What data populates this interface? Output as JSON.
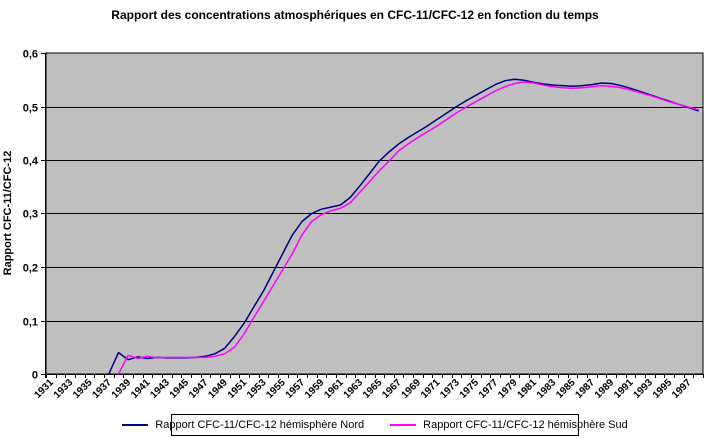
{
  "title": "Rapport des concentrations atmosphériques en CFC-11/CFC-12 en fonction du temps",
  "colors": {
    "chart_bg": "#ffffff",
    "plot_bg": "#c0c0c0",
    "grid": "#000000",
    "axis": "#000000",
    "nord": "#000080",
    "sud": "#ff00ff"
  },
  "y_axis": {
    "title": "Rapport CFC-11/CFC-12",
    "tick_labels": [
      "0",
      "0,1",
      "0,2",
      "0,3",
      "0,4",
      "0,5",
      "0,6"
    ],
    "min": 0,
    "max": 0.6
  },
  "x_axis": {
    "tick_labels": [
      "1931",
      "1933",
      "1935",
      "1937",
      "1939",
      "1941",
      "1943",
      "1945",
      "1947",
      "1949",
      "1951",
      "1953",
      "1955",
      "1957",
      "1959",
      "1961",
      "1963",
      "1965",
      "1967",
      "1969",
      "1971",
      "1973",
      "1975",
      "1977",
      "1979",
      "1981",
      "1983",
      "1985",
      "1987",
      "1989",
      "1991",
      "1993",
      "1995",
      "1997"
    ]
  },
  "legend": {
    "items": [
      {
        "label": "Rapport CFC-11/CFC-12 hémisphère Nord",
        "color": "#000080"
      },
      {
        "label": "Rapport CFC-11/CFC-12 hémisphère Sud",
        "color": "#ff00ff"
      }
    ]
  },
  "chart_data": {
    "type": "line",
    "title": "Rapport des concentrations atmosphériques en CFC-11/CFC-12 en fonction du temps",
    "xlabel": "",
    "ylabel": "Rapport CFC-11/CFC-12",
    "ylim": [
      0,
      0.6
    ],
    "grid": true,
    "plot_background": "#c0c0c0",
    "legend_position": "bottom",
    "x_start": 1931,
    "x_end": 1998,
    "x_label_step": 2,
    "x": [
      1931,
      1932,
      1933,
      1934,
      1935,
      1936,
      1937,
      1938,
      1939,
      1940,
      1941,
      1942,
      1943,
      1944,
      1945,
      1946,
      1947,
      1948,
      1949,
      1950,
      1951,
      1952,
      1953,
      1954,
      1955,
      1956,
      1957,
      1958,
      1959,
      1960,
      1961,
      1962,
      1963,
      1964,
      1965,
      1966,
      1967,
      1968,
      1969,
      1970,
      1971,
      1972,
      1973,
      1974,
      1975,
      1976,
      1977,
      1978,
      1979,
      1980,
      1981,
      1982,
      1983,
      1984,
      1985,
      1986,
      1987,
      1988,
      1989,
      1990,
      1991,
      1992,
      1993,
      1994,
      1995,
      1996,
      1997,
      1998
    ],
    "series": [
      {
        "name": "Rapport CFC-11/CFC-12 hémisphère Nord",
        "color": "#000080",
        "values": [
          null,
          null,
          null,
          null,
          null,
          null,
          0,
          0.04,
          0.027,
          0.032,
          0.029,
          0.031,
          0.03,
          0.03,
          0.03,
          0.031,
          0.033,
          0.038,
          0.048,
          0.07,
          0.095,
          0.125,
          0.155,
          0.19,
          0.225,
          0.26,
          0.285,
          0.3,
          0.308,
          0.312,
          0.316,
          0.33,
          0.352,
          0.375,
          0.398,
          0.415,
          0.43,
          0.442,
          0.453,
          0.464,
          0.476,
          0.488,
          0.5,
          0.511,
          0.521,
          0.531,
          0.541,
          0.548,
          0.551,
          0.549,
          0.545,
          0.542,
          0.54,
          0.539,
          0.538,
          0.539,
          0.541,
          0.544,
          0.543,
          0.539,
          0.534,
          0.528,
          0.522,
          0.516,
          0.51,
          0.504,
          0.498,
          0.492
        ]
      },
      {
        "name": "Rapport CFC-11/CFC-12 hémisphère Sud",
        "color": "#ff00ff",
        "values": [
          null,
          null,
          null,
          null,
          null,
          null,
          null,
          0,
          0.035,
          0.029,
          0.033,
          0.03,
          0.031,
          0.031,
          0.031,
          0.031,
          0.031,
          0.033,
          0.038,
          0.05,
          0.075,
          0.105,
          0.135,
          0.165,
          0.195,
          0.225,
          0.26,
          0.285,
          0.298,
          0.305,
          0.31,
          0.32,
          0.34,
          0.36,
          0.38,
          0.398,
          0.417,
          0.43,
          0.442,
          0.453,
          0.464,
          0.476,
          0.488,
          0.499,
          0.509,
          0.519,
          0.529,
          0.537,
          0.543,
          0.546,
          0.544,
          0.54,
          0.537,
          0.535,
          0.534,
          0.535,
          0.537,
          0.539,
          0.538,
          0.535,
          0.531,
          0.526,
          0.521,
          0.515,
          0.509,
          0.504,
          0.499,
          0.494
        ]
      }
    ]
  }
}
